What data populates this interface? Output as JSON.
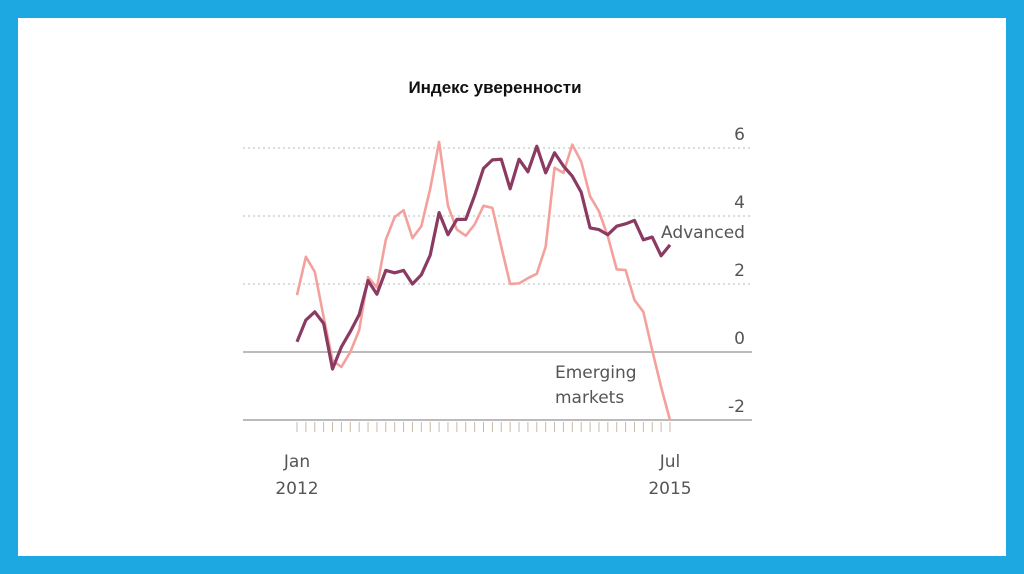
{
  "chart_data": {
    "type": "line",
    "title": "Индекс уверенности",
    "xlabel": "",
    "ylabel": "",
    "ylim": [
      -2,
      6
    ],
    "yticks": [
      6,
      4,
      2,
      0,
      -2
    ],
    "x_start": "Jan 2012",
    "x_end": "Jul 2015",
    "x_tick_labels": [
      {
        "month": "Jan",
        "year": "2012"
      },
      {
        "month": "Jul",
        "year": "2015"
      }
    ],
    "grid": true,
    "series": [
      {
        "name": "Advanced",
        "color": "#8b3a62",
        "values": [
          0.3,
          0.94,
          1.18,
          0.84,
          -0.5,
          0.15,
          0.6,
          1.1,
          2.1,
          1.7,
          2.4,
          2.33,
          2.4,
          2.0,
          2.27,
          2.85,
          4.1,
          3.45,
          3.9,
          3.9,
          4.6,
          5.4,
          5.65,
          5.67,
          4.8,
          5.67,
          5.3,
          6.05,
          5.27,
          5.86,
          5.47,
          5.17,
          4.7,
          3.65,
          3.6,
          3.45,
          3.7,
          3.77,
          3.87,
          3.3,
          3.38,
          2.83,
          3.15
        ]
      },
      {
        "name": "Emerging markets",
        "label_lines": [
          "Emerging",
          "markets"
        ],
        "color": "#f4a09c",
        "values": [
          1.67,
          2.8,
          2.36,
          1.03,
          -0.25,
          -0.44,
          0,
          0.64,
          2.2,
          1.9,
          3.3,
          3.97,
          4.17,
          3.35,
          3.7,
          4.8,
          6.18,
          4.3,
          3.6,
          3.42,
          3.75,
          4.3,
          4.24,
          3.1,
          2.0,
          2.02,
          2.17,
          2.3,
          3.1,
          5.42,
          5.27,
          6.1,
          5.6,
          4.58,
          4.14,
          3.4,
          2.43,
          2.41,
          1.53,
          1.18,
          0.05,
          -1.03,
          -2.0
        ]
      }
    ]
  }
}
